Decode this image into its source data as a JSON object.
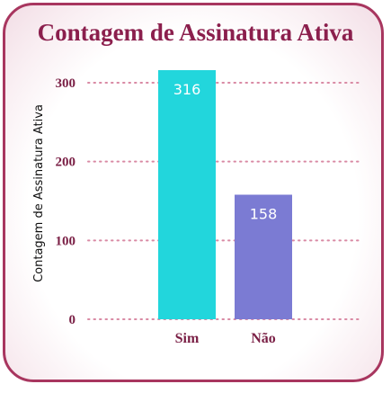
{
  "chart_data": {
    "type": "bar",
    "title": "Contagem de Assinatura Ativa",
    "ylabel": "Contagem de Assinatura Ativa",
    "xlabel": "",
    "categories": [
      "Sim",
      "Não"
    ],
    "values": [
      316,
      158
    ],
    "data_labels": [
      "316",
      "158"
    ],
    "bar_colors": [
      "#22d6dc",
      "#7b7bd3"
    ],
    "ylim": [
      0,
      316
    ],
    "yticks": [
      0,
      100,
      200,
      300
    ],
    "ytick_labels": [
      "0",
      "100",
      "200",
      "300"
    ],
    "grid": true,
    "grid_style": "dotted",
    "grid_color": "#d98aa4",
    "legend": "none"
  },
  "colors": {
    "border": "#a8365f",
    "title": "#8b1f4d",
    "tick_text": "#7a1f45"
  }
}
